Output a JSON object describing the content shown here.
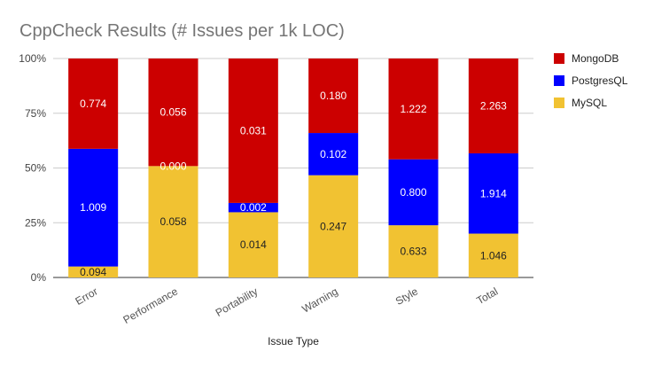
{
  "chart_data": {
    "type": "bar",
    "stacked": "percent",
    "title": "CppCheck Results (# Issues per 1k LOC)",
    "xlabel": "Issue Type",
    "ylabel": "",
    "categories": [
      "Error",
      "Performance",
      "Portability",
      "Warning",
      "Style",
      "Total"
    ],
    "y_ticks": [
      "0%",
      "25%",
      "50%",
      "75%",
      "100%"
    ],
    "ylim": [
      0,
      100
    ],
    "grid": true,
    "legend_position": "right",
    "series": [
      {
        "name": "MySQL",
        "color": "#f1c232",
        "label_color": "#222222",
        "values": [
          0.094,
          0.058,
          0.014,
          0.247,
          0.633,
          1.046
        ],
        "labels": [
          "0.094",
          "0.058",
          "0.014",
          "0.247",
          "0.633",
          "1.046"
        ]
      },
      {
        "name": "PostgresQL",
        "color": "#0000ff",
        "label_color": "#ffffff",
        "values": [
          1.009,
          0.0,
          0.002,
          0.102,
          0.8,
          1.914
        ],
        "labels": [
          "1.009",
          "0.000",
          "0.002",
          "0.102",
          "0.800",
          "1.914"
        ]
      },
      {
        "name": "MongoDB",
        "color": "#cc0000",
        "label_color": "#ffffff",
        "values": [
          0.774,
          0.056,
          0.031,
          0.18,
          1.222,
          2.263
        ],
        "labels": [
          "0.774",
          "0.056",
          "0.031",
          "0.180",
          "1.222",
          "2.263"
        ]
      }
    ],
    "legend_order": [
      "MongoDB",
      "PostgresQL",
      "MySQL"
    ]
  }
}
